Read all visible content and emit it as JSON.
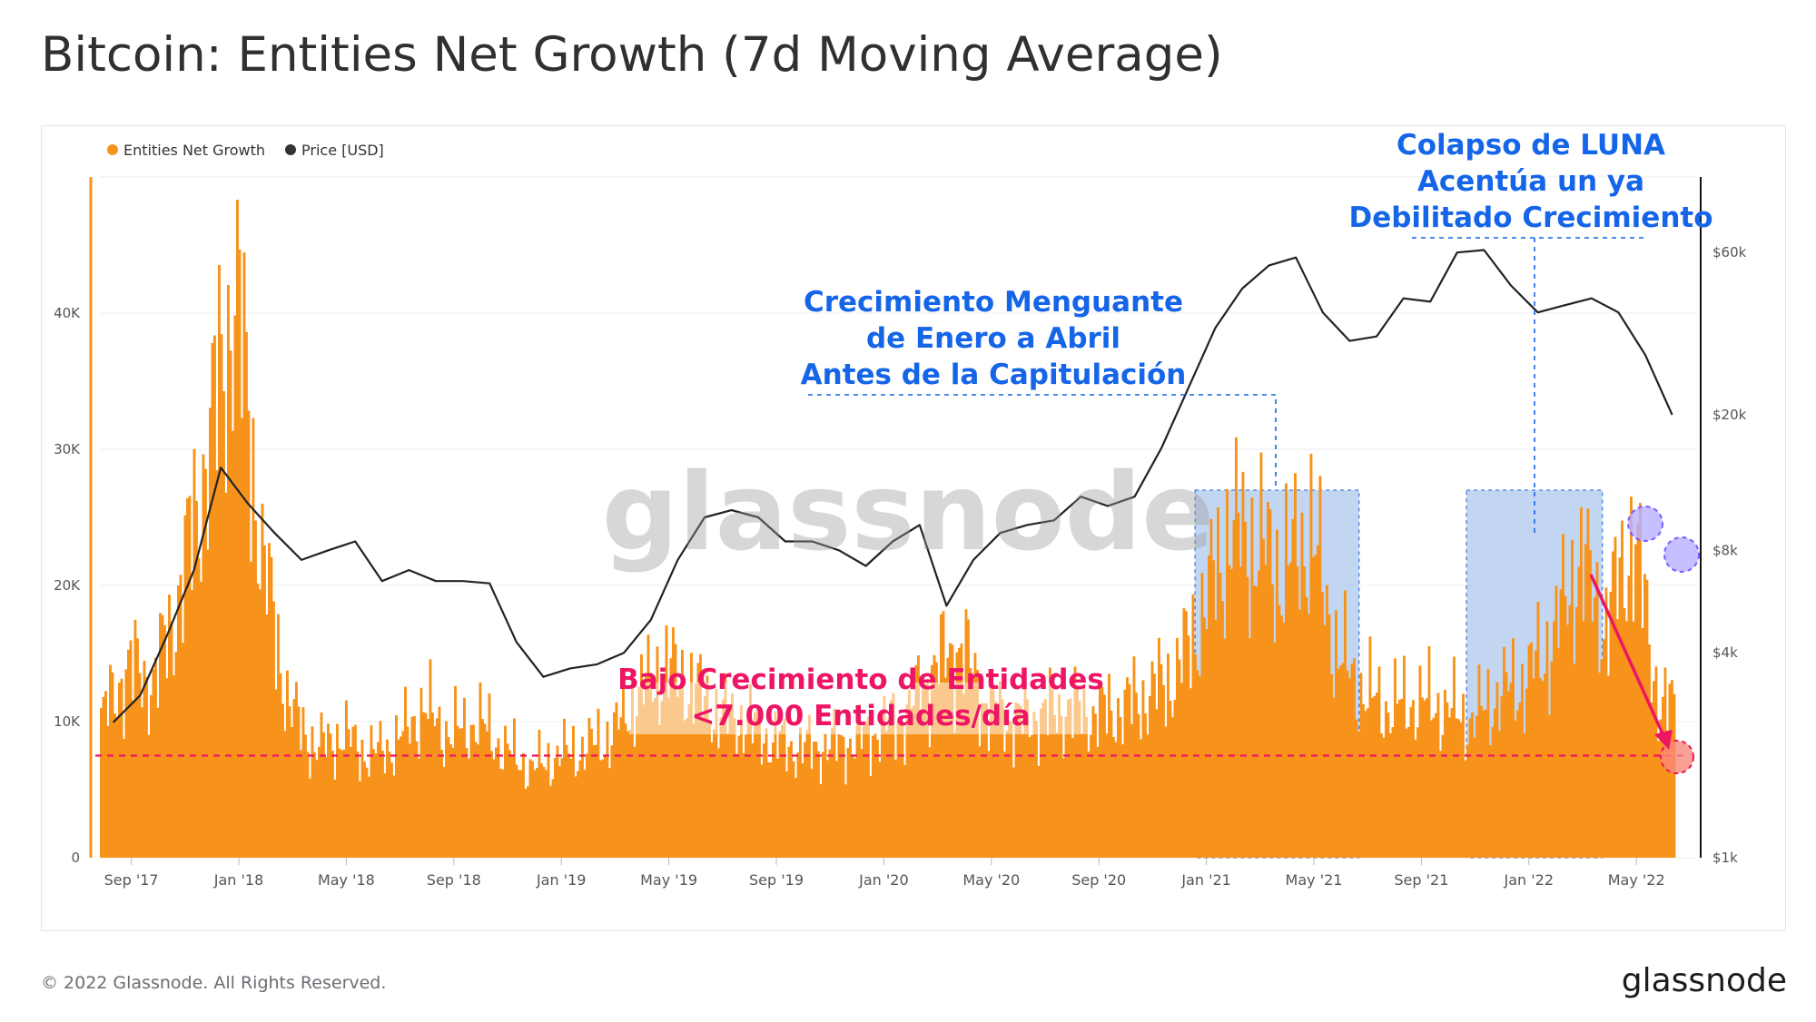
{
  "title": "Bitcoin: Entities Net Growth (7d Moving Average)",
  "footer": {
    "copyright": "© 2022 Glassnode. All Rights Reserved.",
    "logo": "glassnode"
  },
  "watermark": "glassnode",
  "legend": [
    {
      "label": "Entities Net Growth",
      "color": "#f7931a"
    },
    {
      "label": "Price [USD]",
      "color": "#333333"
    }
  ],
  "annotations": {
    "luna": [
      "Colapso de LUNA",
      "Acentúa un ya",
      "Debilitado Crecimiento"
    ],
    "waning": [
      "Crecimiento Menguante",
      "de Enero a Abril",
      "Antes de la Capitulación"
    ],
    "low": [
      "Bajo Crecimiento de Entidades",
      "<7.000 Entidades/día"
    ]
  },
  "colors": {
    "bar": "#f7931a",
    "price": "#222222",
    "annotation_blue": "#1565e8",
    "annotation_red": "#ee1565",
    "highlight_fill": "#bcd6f5",
    "circle_purple": "#7b5cff"
  },
  "chart_data": {
    "type": "bar",
    "x_ticks": [
      "Sep '17",
      "Jan '18",
      "May '18",
      "Sep '18",
      "Jan '19",
      "May '19",
      "Sep '19",
      "Jan '20",
      "May '20",
      "Sep '20",
      "Jan '21",
      "May '21",
      "Sep '21",
      "Jan '22",
      "May '22"
    ],
    "y_left_ticks": [
      "0",
      "10K",
      "20K",
      "30K",
      "40K"
    ],
    "y_left_range": [
      0,
      50000
    ],
    "y_right_ticks": [
      "$1k",
      "$4k",
      "$8k",
      "$20k",
      "$60k"
    ],
    "y_right_range": [
      1000,
      100000
    ],
    "y_right_scale": "log",
    "threshold": 7500,
    "series": [
      {
        "name": "Entities Net Growth",
        "x": [
          "2017-08",
          "2017-09",
          "2017-10",
          "2017-11",
          "2017-12",
          "2018-01",
          "2018-02",
          "2018-03",
          "2018-04",
          "2018-05",
          "2018-06",
          "2018-07",
          "2018-08",
          "2018-09",
          "2018-10",
          "2018-11",
          "2018-12",
          "2019-01",
          "2019-02",
          "2019-03",
          "2019-04",
          "2019-05",
          "2019-06",
          "2019-07",
          "2019-08",
          "2019-09",
          "2019-10",
          "2019-11",
          "2019-12",
          "2020-01",
          "2020-02",
          "2020-03",
          "2020-04",
          "2020-05",
          "2020-06",
          "2020-07",
          "2020-08",
          "2020-09",
          "2020-10",
          "2020-11",
          "2020-12",
          "2021-01",
          "2021-02",
          "2021-03",
          "2021-04",
          "2021-05",
          "2021-06",
          "2021-07",
          "2021-08",
          "2021-09",
          "2021-10",
          "2021-11",
          "2021-12",
          "2022-01",
          "2022-02",
          "2022-03",
          "2022-04",
          "2022-05",
          "2022-06"
        ],
        "values": [
          10000,
          14000,
          13000,
          20000,
          30000,
          42000,
          22000,
          11000,
          8000,
          9000,
          7500,
          8500,
          11000,
          9000,
          10000,
          8000,
          6500,
          7500,
          8000,
          9000,
          12000,
          14000,
          12500,
          10500,
          10000,
          8500,
          8000,
          8200,
          8500,
          9500,
          10500,
          14000,
          15500,
          11000,
          10000,
          10500,
          11000,
          10500,
          11000,
          12000,
          13500,
          18000,
          24000,
          23000,
          21000,
          24000,
          15000,
          12000,
          11000,
          11500,
          11000,
          10000,
          12000,
          13000,
          16000,
          22000,
          17000,
          24000,
          11000
        ]
      },
      {
        "name": "Price [USD]",
        "x": [
          "2017-08",
          "2017-09",
          "2017-10",
          "2017-11",
          "2017-12",
          "2018-01",
          "2018-02",
          "2018-03",
          "2018-04",
          "2018-05",
          "2018-06",
          "2018-07",
          "2018-08",
          "2018-09",
          "2018-10",
          "2018-11",
          "2018-12",
          "2019-01",
          "2019-02",
          "2019-03",
          "2019-04",
          "2019-05",
          "2019-06",
          "2019-07",
          "2019-08",
          "2019-09",
          "2019-10",
          "2019-11",
          "2019-12",
          "2020-01",
          "2020-02",
          "2020-03",
          "2020-04",
          "2020-05",
          "2020-06",
          "2020-07",
          "2020-08",
          "2020-09",
          "2020-10",
          "2020-11",
          "2020-12",
          "2021-01",
          "2021-02",
          "2021-03",
          "2021-04",
          "2021-05",
          "2021-06",
          "2021-07",
          "2021-08",
          "2021-09",
          "2021-10",
          "2021-11",
          "2021-12",
          "2022-01",
          "2022-02",
          "2022-03",
          "2022-04",
          "2022-05",
          "2022-06"
        ],
        "values": [
          2500,
          3000,
          4500,
          7000,
          14000,
          11000,
          9000,
          7500,
          8000,
          8500,
          6500,
          7000,
          6500,
          6500,
          6400,
          4300,
          3400,
          3600,
          3700,
          4000,
          5000,
          7500,
          10000,
          10500,
          10000,
          8500,
          8500,
          8000,
          7200,
          8500,
          9500,
          5500,
          7500,
          9000,
          9500,
          9800,
          11500,
          10800,
          11500,
          16000,
          24000,
          36000,
          47000,
          55000,
          58000,
          40000,
          33000,
          34000,
          44000,
          43000,
          60000,
          61000,
          48000,
          40000,
          42000,
          44000,
          40000,
          30000,
          20000
        ]
      }
    ]
  }
}
